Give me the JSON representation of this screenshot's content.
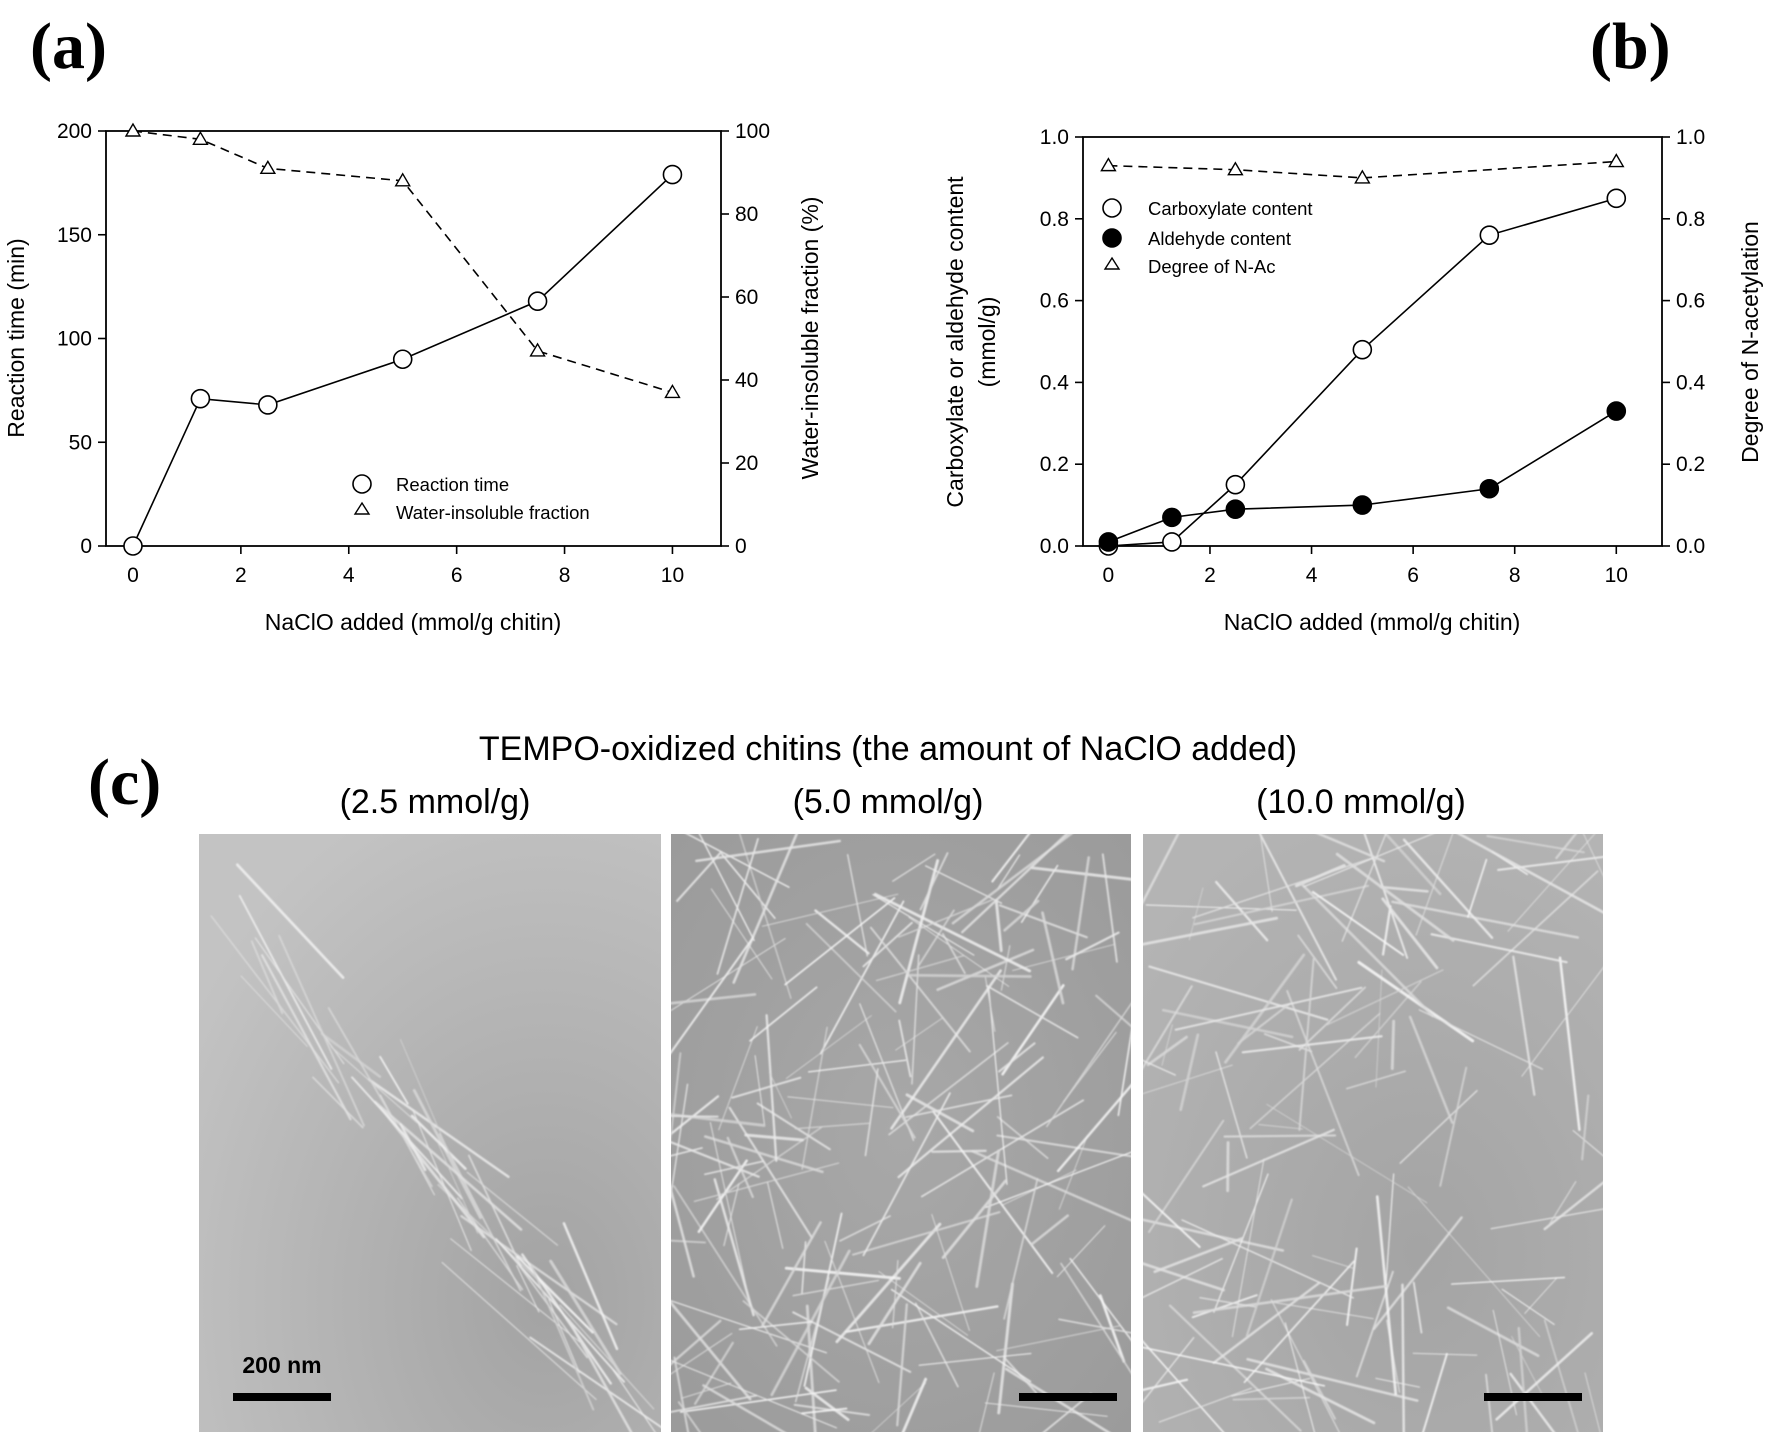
{
  "panels": {
    "a_label": "(a)",
    "b_label": "(b)",
    "c_label": "(c)"
  },
  "chart_data": [
    {
      "id": "a",
      "type": "line",
      "xlabel": "NaClO added (mmol/g chitin)",
      "ylabel_left": "Reaction time (min)",
      "ylabel_right": "Water-insoluble fraction (%)",
      "xlim": [
        -0.5,
        10.9
      ],
      "ylim_left": [
        0,
        200
      ],
      "ylim_right": [
        0,
        100
      ],
      "xticks": [
        0,
        2,
        4,
        6,
        8,
        10
      ],
      "yticks_left": [
        0,
        50,
        100,
        150,
        200
      ],
      "yticks_right": [
        0,
        20,
        40,
        60,
        80,
        100
      ],
      "legend_position": "lower-right",
      "series": [
        {
          "name": "Reaction time",
          "axis": "left",
          "marker": "open-circle",
          "line": "solid",
          "x": [
            0,
            1.25,
            2.5,
            5,
            7.5,
            10
          ],
          "y": [
            0,
            71,
            68,
            90,
            118,
            179
          ]
        },
        {
          "name": "Water-insoluble fraction",
          "axis": "right",
          "marker": "open-triangle",
          "line": "dashed",
          "x": [
            0,
            1.25,
            2.5,
            5,
            7.5,
            10
          ],
          "y": [
            100,
            98,
            91,
            88,
            47,
            37
          ]
        }
      ]
    },
    {
      "id": "b",
      "type": "line",
      "xlabel": "NaClO added (mmol/g chitin)",
      "ylabel_left": [
        "Carboxylate or aldehyde content",
        "(mmol/g)"
      ],
      "ylabel_right": "Degree of N-acetylation",
      "xlim": [
        -0.5,
        10.9
      ],
      "ylim_left": [
        0,
        1.0
      ],
      "ylim_right": [
        0,
        1.0
      ],
      "xticks": [
        0,
        2,
        4,
        6,
        8,
        10
      ],
      "yticks_left": [
        "0.0",
        "0.2",
        "0.4",
        "0.6",
        "0.8",
        "1.0"
      ],
      "yticks_right": [
        "0.0",
        "0.2",
        "0.4",
        "0.6",
        "0.8",
        "1.0"
      ],
      "legend_position": "upper-left",
      "series": [
        {
          "name": "Carboxylate content",
          "axis": "left",
          "marker": "open-circle",
          "line": "solid",
          "x": [
            0,
            1.25,
            2.5,
            5,
            7.5,
            10
          ],
          "y": [
            0.0,
            0.01,
            0.15,
            0.48,
            0.76,
            0.85
          ]
        },
        {
          "name": "Aldehyde content",
          "axis": "left",
          "marker": "filled-circle",
          "line": "solid",
          "x": [
            0,
            1.25,
            2.5,
            5,
            7.5,
            10
          ],
          "y": [
            0.01,
            0.07,
            0.09,
            0.1,
            0.14,
            0.33
          ]
        },
        {
          "name": "Degree of N-Ac",
          "axis": "right",
          "marker": "open-triangle",
          "line": "dashed",
          "x": [
            0,
            2.5,
            5,
            10
          ],
          "y": [
            0.93,
            0.92,
            0.9,
            0.94
          ]
        }
      ]
    }
  ],
  "micrographs": {
    "title": "TEMPO-oxidized chitins (the amount of NaClO added)",
    "labels": [
      "(2.5 mmol/g)",
      "(5.0 mmol/g)",
      "(10.0 mmol/g)"
    ],
    "scale_bar": "200 nm"
  }
}
